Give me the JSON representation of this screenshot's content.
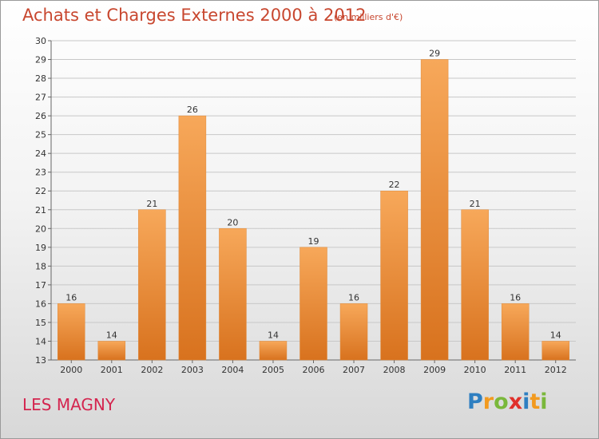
{
  "title": "Achats et Charges Externes 2000 à 2012",
  "subtitle": "(en milliers d'€)",
  "town": "LES MAGNY",
  "logo": {
    "text": "Proxiti",
    "letters": [
      {
        "ch": "P",
        "color": "#2e7fc1"
      },
      {
        "ch": "r",
        "color": "#f29a1f"
      },
      {
        "ch": "o",
        "color": "#7ab83b"
      },
      {
        "ch": "x",
        "color": "#e0302a"
      },
      {
        "ch": "i",
        "color": "#2e7fc1"
      },
      {
        "ch": "t",
        "color": "#f29a1f"
      },
      {
        "ch": "i",
        "color": "#7ab83b"
      }
    ]
  },
  "colors": {
    "bar_light": "#f7a85a",
    "bar_dark": "#d8721e",
    "grid": "#c8c8c8",
    "text": "#333333"
  },
  "chart_data": {
    "type": "bar",
    "categories": [
      "2000",
      "2001",
      "2002",
      "2003",
      "2004",
      "2005",
      "2006",
      "2007",
      "2008",
      "2009",
      "2010",
      "2011",
      "2012"
    ],
    "values": [
      16,
      14,
      21,
      26,
      20,
      14,
      19,
      16,
      22,
      29,
      21,
      16,
      14
    ],
    "ylim": [
      13,
      30
    ],
    "yticks": [
      13,
      14,
      15,
      16,
      17,
      18,
      19,
      20,
      21,
      22,
      23,
      24,
      25,
      26,
      27,
      28,
      29,
      30
    ],
    "grid": true,
    "data_labels": true
  }
}
